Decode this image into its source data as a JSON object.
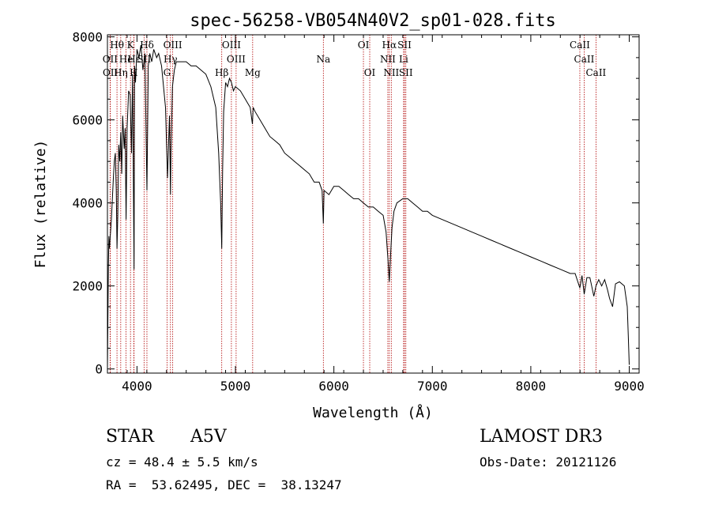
{
  "chart_data": {
    "type": "line",
    "title": "spec-56258-VB054N40V2_sp01-028.fits",
    "xlabel": "Wavelength (Å)",
    "ylabel": "Flux (relative)",
    "xlim": [
      3700,
      9100
    ],
    "ylim": [
      -100,
      8050
    ],
    "xticks": [
      4000,
      5000,
      6000,
      7000,
      8000,
      9000
    ],
    "yticks": [
      0,
      2000,
      4000,
      6000,
      8000
    ],
    "grid": false,
    "series": [
      {
        "name": "flux",
        "x": [
          3700,
          3710,
          3715,
          3720,
          3740,
          3760,
          3770,
          3780,
          3790,
          3797,
          3805,
          3815,
          3825,
          3835,
          3845,
          3855,
          3870,
          3880,
          3889,
          3900,
          3915,
          3930,
          3945,
          3955,
          3970,
          3975,
          3985,
          4000,
          4020,
          4040,
          4060,
          4080,
          4101,
          4115,
          4130,
          4150,
          4170,
          4200,
          4220,
          4250,
          4270,
          4290,
          4310,
          4330,
          4340,
          4345,
          4360,
          4380,
          4400,
          4450,
          4500,
          4550,
          4600,
          4650,
          4700,
          4750,
          4800,
          4830,
          4850,
          4861,
          4870,
          4880,
          4900,
          4920,
          4940,
          4960,
          4980,
          5000,
          5050,
          5100,
          5150,
          5172,
          5180,
          5200,
          5250,
          5300,
          5350,
          5400,
          5450,
          5500,
          5550,
          5600,
          5650,
          5700,
          5750,
          5800,
          5850,
          5880,
          5893,
          5900,
          5950,
          6000,
          6050,
          6100,
          6150,
          6200,
          6250,
          6300,
          6350,
          6400,
          6450,
          6500,
          6530,
          6550,
          6563,
          6575,
          6590,
          6610,
          6640,
          6700,
          6750,
          6800,
          6850,
          6900,
          6950,
          7000,
          7100,
          7200,
          7300,
          7400,
          7500,
          7600,
          7700,
          7800,
          7900,
          8000,
          8100,
          8200,
          8300,
          8400,
          8450,
          8498,
          8520,
          8542,
          8570,
          8600,
          8640,
          8662,
          8690,
          8720,
          8750,
          8780,
          8800,
          8830,
          8860,
          8900,
          8950,
          8980,
          8990,
          9000
        ],
        "y": [
          0,
          2500,
          3200,
          2900,
          3600,
          4600,
          5000,
          5200,
          4300,
          2900,
          3700,
          5400,
          5000,
          5700,
          4700,
          6100,
          5300,
          5800,
          3600,
          5800,
          6700,
          6600,
          5200,
          7100,
          2400,
          7300,
          6900,
          7700,
          7500,
          7800,
          7200,
          7600,
          4300,
          7300,
          7600,
          7400,
          7700,
          7500,
          7600,
          7300,
          6800,
          6300,
          4600,
          6100,
          4200,
          5200,
          6800,
          7200,
          7400,
          7400,
          7400,
          7300,
          7300,
          7200,
          7100,
          6800,
          6300,
          5200,
          4000,
          2900,
          4800,
          6200,
          6900,
          6800,
          7000,
          6900,
          6700,
          6800,
          6700,
          6500,
          6300,
          5900,
          6300,
          6200,
          6000,
          5800,
          5600,
          5500,
          5400,
          5200,
          5100,
          5000,
          4900,
          4800,
          4700,
          4500,
          4500,
          4300,
          3500,
          4300,
          4200,
          4400,
          4400,
          4300,
          4200,
          4100,
          4100,
          4000,
          3900,
          3900,
          3800,
          3700,
          3300,
          2600,
          2100,
          2700,
          3400,
          3800,
          4000,
          4100,
          4100,
          4000,
          3900,
          3800,
          3800,
          3700,
          3600,
          3500,
          3400,
          3300,
          3200,
          3100,
          3000,
          2900,
          2800,
          2700,
          2600,
          2500,
          2400,
          2300,
          2300,
          1950,
          2250,
          1800,
          2200,
          2200,
          1750,
          2000,
          2150,
          2000,
          2150,
          1900,
          1700,
          1500,
          2050,
          2100,
          2000,
          1500,
          800,
          100
        ]
      }
    ],
    "line_markers": [
      {
        "label": "Hθ",
        "wl": 3797,
        "row": 1
      },
      {
        "label": "OII",
        "wl": 3727,
        "row": 2
      },
      {
        "label": "OII",
        "wl": 3729,
        "row": 3
      },
      {
        "label": "He",
        "wl": 3889,
        "row": 2
      },
      {
        "label": "Hη",
        "wl": 3835,
        "row": 3
      },
      {
        "label": "K",
        "wl": 3934,
        "row": 1
      },
      {
        "label": "H",
        "wl": 3968,
        "row": 3
      },
      {
        "label": "Hε",
        "wl": 3970,
        "row": 2
      },
      {
        "label": "Hδ",
        "wl": 4101,
        "row": 1
      },
      {
        "label": "SII",
        "wl": 4072,
        "row": 2
      },
      {
        "label": "OIII",
        "wl": 4363,
        "row": 1
      },
      {
        "label": "Hγ",
        "wl": 4340,
        "row": 2
      },
      {
        "label": "G",
        "wl": 4305,
        "row": 3
      },
      {
        "label": "Hβ",
        "wl": 4861,
        "row": 3
      },
      {
        "label": "OIII",
        "wl": 4959,
        "row": 1
      },
      {
        "label": "OIII",
        "wl": 5007,
        "row": 2
      },
      {
        "label": "Mg",
        "wl": 5175,
        "row": 3
      },
      {
        "label": "Na",
        "wl": 5893,
        "row": 2
      },
      {
        "label": "OI",
        "wl": 6300,
        "row": 1
      },
      {
        "label": "OI",
        "wl": 6364,
        "row": 3
      },
      {
        "label": "Hα",
        "wl": 6563,
        "row": 1
      },
      {
        "label": "NII",
        "wl": 6548,
        "row": 2
      },
      {
        "label": "NII",
        "wl": 6583,
        "row": 3
      },
      {
        "label": "SII",
        "wl": 6717,
        "row": 1
      },
      {
        "label": "Li",
        "wl": 6708,
        "row": 2
      },
      {
        "label": "SII",
        "wl": 6731,
        "row": 3
      },
      {
        "label": "CaII",
        "wl": 8498,
        "row": 1
      },
      {
        "label": "CaII",
        "wl": 8542,
        "row": 2
      },
      {
        "label": "CaII",
        "wl": 8662,
        "row": 3
      }
    ]
  },
  "info": {
    "object_class": "STAR",
    "subclass": "A5V",
    "survey": "LAMOST DR3",
    "cz_line": "cz = 48.4 ± 5.5 km/s",
    "obs_date": "Obs-Date: 20121126",
    "radec": "RA =  53.62495, DEC =  38.13247"
  },
  "colors": {
    "line": "#000000",
    "marker": "#b00000",
    "background": "#ffffff"
  }
}
